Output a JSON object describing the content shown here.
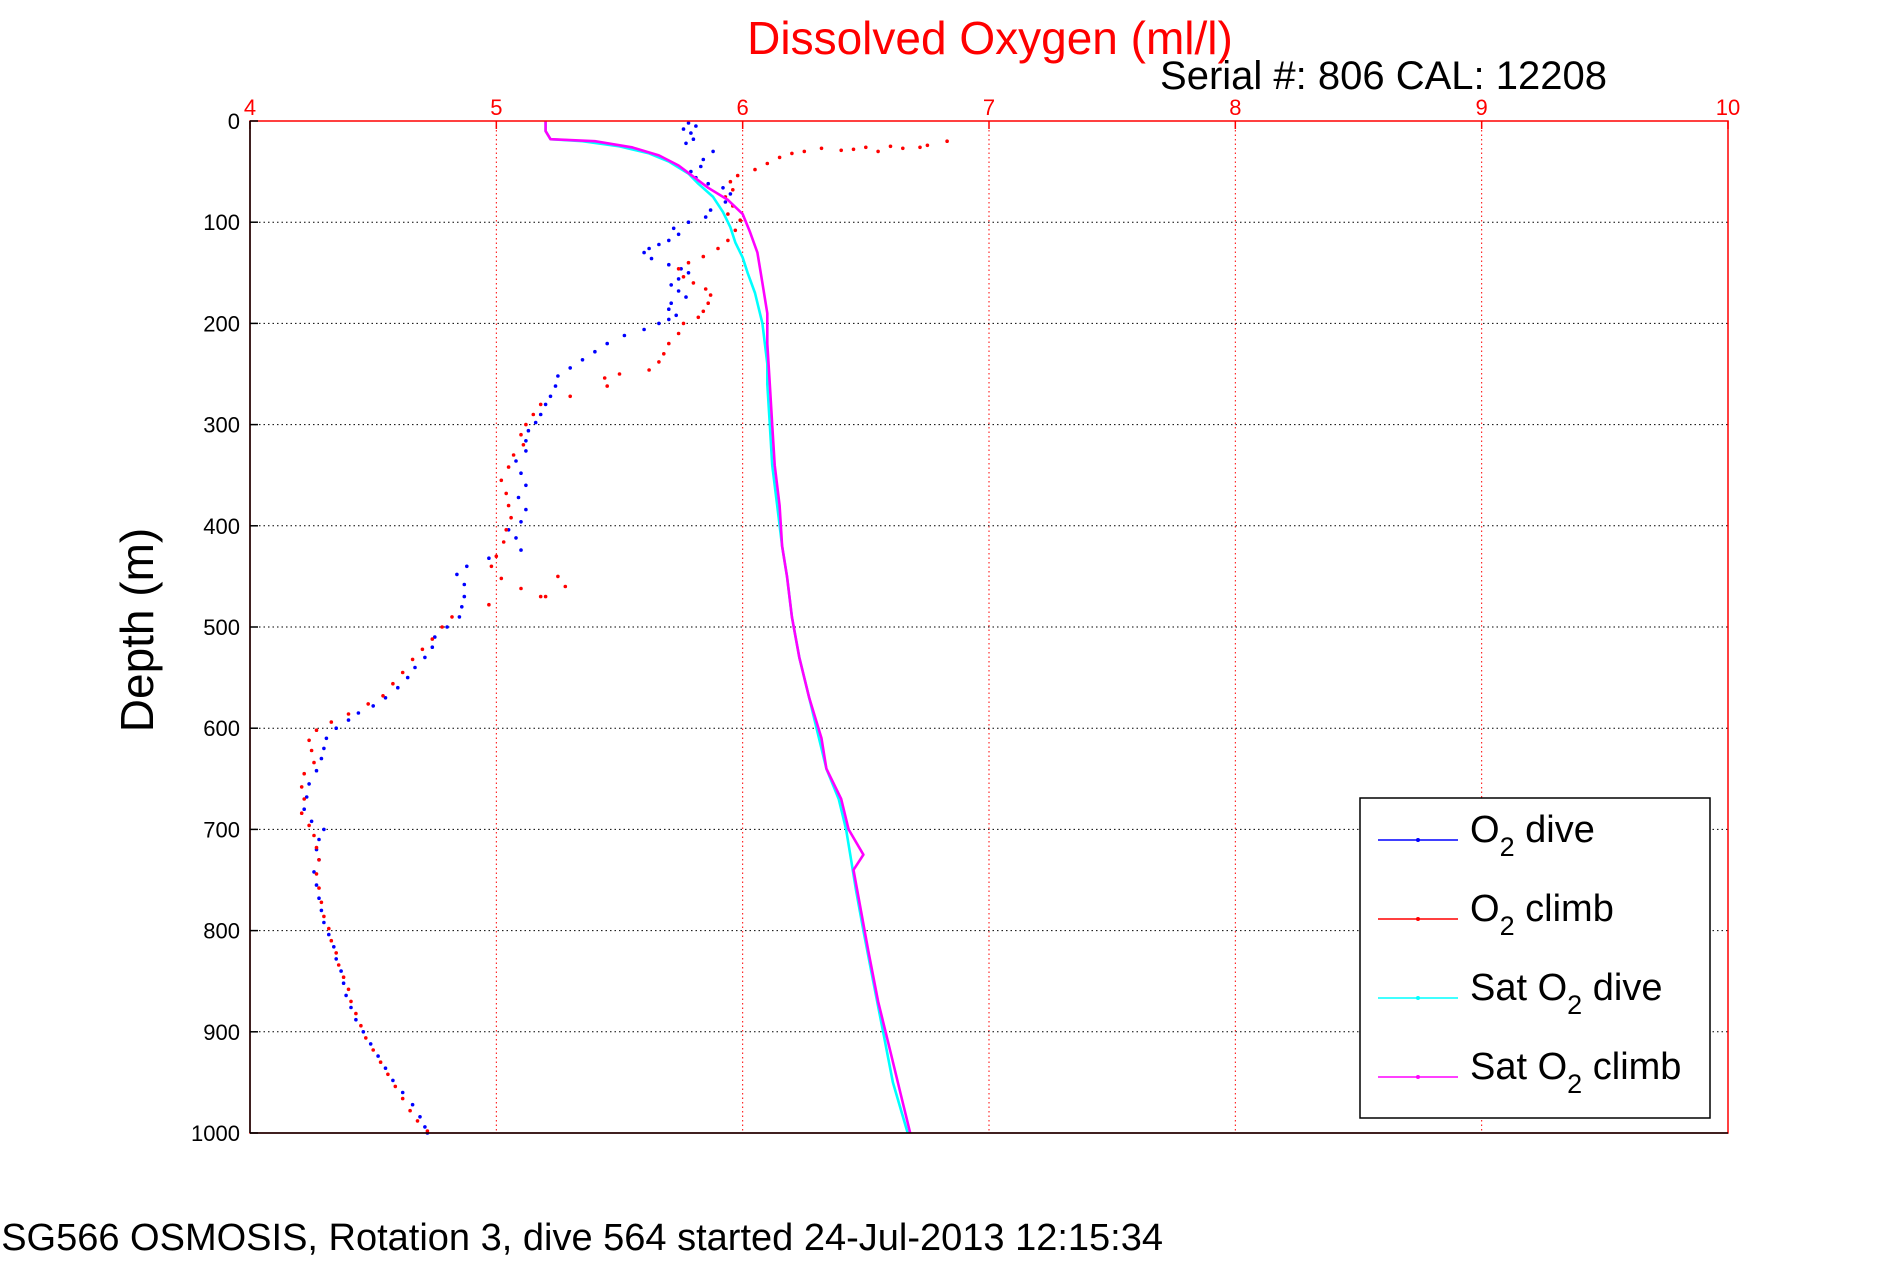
{
  "chart_data": {
    "type": "scatter",
    "title": "Dissolved Oxygen (ml/l)",
    "annotation": "Serial #: 806  CAL: 12208",
    "caption": "SG566 OSMOSIS, Rotation 3, dive 564 started 24-Jul-2013 12:15:34",
    "ylabel": "Depth (m)",
    "xlim": [
      4,
      10
    ],
    "ylim": [
      0,
      1000
    ],
    "y_reversed": true,
    "x_axis_position": "top",
    "grid": true,
    "x_ticks": [
      "4",
      "5",
      "6",
      "7",
      "8",
      "9",
      "10"
    ],
    "y_ticks": [
      "0",
      "100",
      "200",
      "300",
      "400",
      "500",
      "600",
      "700",
      "800",
      "900",
      "1000"
    ],
    "legend_position": "bottom-right",
    "legend": [
      {
        "main": "O",
        "sub": "2",
        "rest": " dive"
      },
      {
        "main": "O",
        "sub": "2",
        "rest": " climb"
      },
      {
        "main": "Sat O",
        "sub": "2",
        "rest": " dive"
      },
      {
        "main": "Sat O",
        "sub": "2",
        "rest": " climb"
      }
    ],
    "colors": {
      "o2_dive": "#0000ff",
      "o2_climb": "#ff0000",
      "sat_dive": "#00ffff",
      "sat_climb": "#ff00ff",
      "axis": "#ff0000",
      "grid": "#ff0000"
    },
    "series": [
      {
        "name": "O2 dive",
        "style": "dots",
        "points": [
          [
            5.78,
            2
          ],
          [
            5.81,
            5
          ],
          [
            5.76,
            8
          ],
          [
            5.79,
            12
          ],
          [
            5.8,
            18
          ],
          [
            5.77,
            22
          ],
          [
            5.88,
            30
          ],
          [
            5.84,
            38
          ],
          [
            5.83,
            45
          ],
          [
            5.79,
            50
          ],
          [
            5.81,
            56
          ],
          [
            5.86,
            62
          ],
          [
            5.92,
            66
          ],
          [
            5.95,
            72
          ],
          [
            5.93,
            80
          ],
          [
            5.87,
            88
          ],
          [
            5.85,
            95
          ],
          [
            5.78,
            100
          ],
          [
            5.72,
            106
          ],
          [
            5.74,
            112
          ],
          [
            5.7,
            118
          ],
          [
            5.66,
            122
          ],
          [
            5.62,
            126
          ],
          [
            5.6,
            130
          ],
          [
            5.63,
            136
          ],
          [
            5.7,
            142
          ],
          [
            5.75,
            146
          ],
          [
            5.78,
            150
          ],
          [
            5.74,
            156
          ],
          [
            5.71,
            162
          ],
          [
            5.74,
            168
          ],
          [
            5.77,
            174
          ],
          [
            5.71,
            180
          ],
          [
            5.7,
            186
          ],
          [
            5.73,
            192
          ],
          [
            5.7,
            196
          ],
          [
            5.66,
            200
          ],
          [
            5.6,
            206
          ],
          [
            5.52,
            212
          ],
          [
            5.45,
            220
          ],
          [
            5.4,
            228
          ],
          [
            5.35,
            236
          ],
          [
            5.3,
            244
          ],
          [
            5.25,
            252
          ],
          [
            5.24,
            262
          ],
          [
            5.22,
            272
          ],
          [
            5.2,
            280
          ],
          [
            5.18,
            290
          ],
          [
            5.16,
            298
          ],
          [
            5.13,
            306
          ],
          [
            5.12,
            316
          ],
          [
            5.12,
            326
          ],
          [
            5.08,
            336
          ],
          [
            5.1,
            348
          ],
          [
            5.12,
            360
          ],
          [
            5.09,
            372
          ],
          [
            5.12,
            384
          ],
          [
            5.1,
            396
          ],
          [
            5.05,
            404
          ],
          [
            5.08,
            412
          ],
          [
            5.1,
            424
          ],
          [
            4.97,
            432
          ],
          [
            4.88,
            440
          ],
          [
            4.84,
            448
          ],
          [
            4.87,
            458
          ],
          [
            4.87,
            470
          ],
          [
            4.86,
            480
          ],
          [
            4.85,
            490
          ],
          [
            4.8,
            500
          ],
          [
            4.75,
            510
          ],
          [
            4.74,
            520
          ],
          [
            4.71,
            530
          ],
          [
            4.67,
            540
          ],
          [
            4.64,
            550
          ],
          [
            4.6,
            560
          ],
          [
            4.55,
            570
          ],
          [
            4.5,
            578
          ],
          [
            4.44,
            585
          ],
          [
            4.4,
            592
          ],
          [
            4.35,
            600
          ],
          [
            4.31,
            610
          ],
          [
            4.3,
            620
          ],
          [
            4.29,
            630
          ],
          [
            4.27,
            642
          ],
          [
            4.24,
            655
          ],
          [
            4.23,
            668
          ],
          [
            4.22,
            680
          ],
          [
            4.25,
            692
          ],
          [
            4.3,
            700
          ],
          [
            4.28,
            710
          ],
          [
            4.27,
            720
          ],
          [
            4.28,
            730
          ],
          [
            4.26,
            742
          ],
          [
            4.27,
            755
          ],
          [
            4.28,
            768
          ],
          [
            4.29,
            780
          ],
          [
            4.3,
            792
          ],
          [
            4.32,
            804
          ],
          [
            4.34,
            816
          ],
          [
            4.35,
            828
          ],
          [
            4.37,
            840
          ],
          [
            4.38,
            852
          ],
          [
            4.39,
            864
          ],
          [
            4.41,
            876
          ],
          [
            4.43,
            888
          ],
          [
            4.46,
            900
          ],
          [
            4.49,
            912
          ],
          [
            4.52,
            924
          ],
          [
            4.55,
            936
          ],
          [
            4.58,
            948
          ],
          [
            4.62,
            960
          ],
          [
            4.66,
            972
          ],
          [
            4.69,
            984
          ],
          [
            4.71,
            994
          ],
          [
            4.72,
            1000
          ]
        ]
      },
      {
        "name": "O2 climb",
        "style": "dots",
        "points": [
          [
            6.83,
            20
          ],
          [
            6.75,
            24
          ],
          [
            6.72,
            26
          ],
          [
            6.65,
            27
          ],
          [
            6.6,
            25
          ],
          [
            6.55,
            30
          ],
          [
            6.5,
            26
          ],
          [
            6.45,
            28
          ],
          [
            6.4,
            29
          ],
          [
            6.32,
            27
          ],
          [
            6.25,
            30
          ],
          [
            6.2,
            32
          ],
          [
            6.15,
            36
          ],
          [
            6.1,
            42
          ],
          [
            6.05,
            48
          ],
          [
            5.98,
            54
          ],
          [
            5.95,
            60
          ],
          [
            5.96,
            68
          ],
          [
            5.93,
            75
          ],
          [
            5.96,
            84
          ],
          [
            5.94,
            92
          ],
          [
            5.99,
            98
          ],
          [
            5.97,
            108
          ],
          [
            5.94,
            118
          ],
          [
            5.9,
            126
          ],
          [
            5.84,
            134
          ],
          [
            5.78,
            140
          ],
          [
            5.74,
            146
          ],
          [
            5.76,
            154
          ],
          [
            5.8,
            160
          ],
          [
            5.85,
            166
          ],
          [
            5.87,
            172
          ],
          [
            5.86,
            180
          ],
          [
            5.84,
            188
          ],
          [
            5.82,
            194
          ],
          [
            5.76,
            200
          ],
          [
            5.74,
            210
          ],
          [
            5.7,
            220
          ],
          [
            5.68,
            230
          ],
          [
            5.66,
            238
          ],
          [
            5.62,
            246
          ],
          [
            5.5,
            250
          ],
          [
            5.44,
            254
          ],
          [
            5.45,
            262
          ],
          [
            5.3,
            272
          ],
          [
            5.18,
            280
          ],
          [
            5.15,
            290
          ],
          [
            5.12,
            300
          ],
          [
            5.1,
            310
          ],
          [
            5.11,
            320
          ],
          [
            5.07,
            330
          ],
          [
            5.05,
            342
          ],
          [
            5.02,
            355
          ],
          [
            5.04,
            368
          ],
          [
            5.05,
            380
          ],
          [
            5.06,
            392
          ],
          [
            5.04,
            404
          ],
          [
            5.03,
            416
          ],
          [
            5.0,
            430
          ],
          [
            4.98,
            440
          ],
          [
            5.02,
            452
          ],
          [
            5.1,
            462
          ],
          [
            5.2,
            470
          ],
          [
            5.28,
            460
          ],
          [
            5.25,
            450
          ],
          [
            5.18,
            470
          ],
          [
            4.97,
            478
          ],
          [
            4.82,
            490
          ],
          [
            4.78,
            500
          ],
          [
            4.74,
            512
          ],
          [
            4.7,
            522
          ],
          [
            4.66,
            532
          ],
          [
            4.62,
            545
          ],
          [
            4.58,
            556
          ],
          [
            4.54,
            568
          ],
          [
            4.48,
            576
          ],
          [
            4.4,
            586
          ],
          [
            4.33,
            594
          ],
          [
            4.27,
            602
          ],
          [
            4.24,
            612
          ],
          [
            4.25,
            622
          ],
          [
            4.26,
            634
          ],
          [
            4.22,
            645
          ],
          [
            4.21,
            658
          ],
          [
            4.22,
            670
          ],
          [
            4.21,
            684
          ],
          [
            4.24,
            696
          ],
          [
            4.26,
            706
          ],
          [
            4.27,
            718
          ],
          [
            4.28,
            730
          ],
          [
            4.27,
            744
          ],
          [
            4.28,
            758
          ],
          [
            4.29,
            772
          ],
          [
            4.3,
            786
          ],
          [
            4.32,
            798
          ],
          [
            4.33,
            810
          ],
          [
            4.35,
            822
          ],
          [
            4.36,
            834
          ],
          [
            4.38,
            846
          ],
          [
            4.4,
            858
          ],
          [
            4.41,
            870
          ],
          [
            4.43,
            882
          ],
          [
            4.45,
            894
          ],
          [
            4.47,
            906
          ],
          [
            4.5,
            918
          ],
          [
            4.53,
            930
          ],
          [
            4.56,
            942
          ],
          [
            4.59,
            954
          ],
          [
            4.62,
            966
          ],
          [
            4.65,
            978
          ],
          [
            4.68,
            988
          ],
          [
            4.72,
            998
          ]
        ]
      },
      {
        "name": "Sat O2 dive",
        "style": "line",
        "points": [
          [
            5.2,
            0
          ],
          [
            5.2,
            10
          ],
          [
            5.22,
            18
          ],
          [
            5.35,
            20
          ],
          [
            5.5,
            25
          ],
          [
            5.62,
            32
          ],
          [
            5.7,
            40
          ],
          [
            5.78,
            52
          ],
          [
            5.82,
            62
          ],
          [
            5.88,
            75
          ],
          [
            5.92,
            90
          ],
          [
            5.95,
            105
          ],
          [
            5.97,
            120
          ],
          [
            6.0,
            135
          ],
          [
            6.02,
            150
          ],
          [
            6.05,
            170
          ],
          [
            6.08,
            200
          ],
          [
            6.1,
            240
          ],
          [
            6.1,
            260
          ],
          [
            6.11,
            300
          ],
          [
            6.12,
            340
          ],
          [
            6.14,
            380
          ],
          [
            6.16,
            420
          ],
          [
            6.18,
            450
          ],
          [
            6.2,
            490
          ],
          [
            6.23,
            530
          ],
          [
            6.27,
            570
          ],
          [
            6.31,
            610
          ],
          [
            6.34,
            640
          ],
          [
            6.39,
            670
          ],
          [
            6.42,
            700
          ],
          [
            6.44,
            730
          ],
          [
            6.46,
            760
          ],
          [
            6.49,
            800
          ],
          [
            6.53,
            850
          ],
          [
            6.57,
            900
          ],
          [
            6.61,
            950
          ],
          [
            6.67,
            1000
          ]
        ]
      },
      {
        "name": "Sat O2 climb",
        "style": "line",
        "points": [
          [
            5.2,
            0
          ],
          [
            5.2,
            10
          ],
          [
            5.22,
            18
          ],
          [
            5.4,
            20
          ],
          [
            5.55,
            26
          ],
          [
            5.66,
            34
          ],
          [
            5.74,
            44
          ],
          [
            5.8,
            55
          ],
          [
            5.86,
            66
          ],
          [
            5.94,
            78
          ],
          [
            6.0,
            92
          ],
          [
            6.03,
            110
          ],
          [
            6.06,
            130
          ],
          [
            6.08,
            160
          ],
          [
            6.1,
            190
          ],
          [
            6.1,
            220
          ],
          [
            6.11,
            260
          ],
          [
            6.12,
            300
          ],
          [
            6.13,
            340
          ],
          [
            6.15,
            380
          ],
          [
            6.16,
            420
          ],
          [
            6.18,
            450
          ],
          [
            6.2,
            490
          ],
          [
            6.23,
            530
          ],
          [
            6.27,
            570
          ],
          [
            6.32,
            610
          ],
          [
            6.34,
            640
          ],
          [
            6.4,
            670
          ],
          [
            6.43,
            700
          ],
          [
            6.49,
            725
          ],
          [
            6.45,
            740
          ],
          [
            6.48,
            780
          ],
          [
            6.51,
            820
          ],
          [
            6.55,
            870
          ],
          [
            6.6,
            920
          ],
          [
            6.64,
            960
          ],
          [
            6.68,
            1000
          ]
        ]
      }
    ]
  }
}
